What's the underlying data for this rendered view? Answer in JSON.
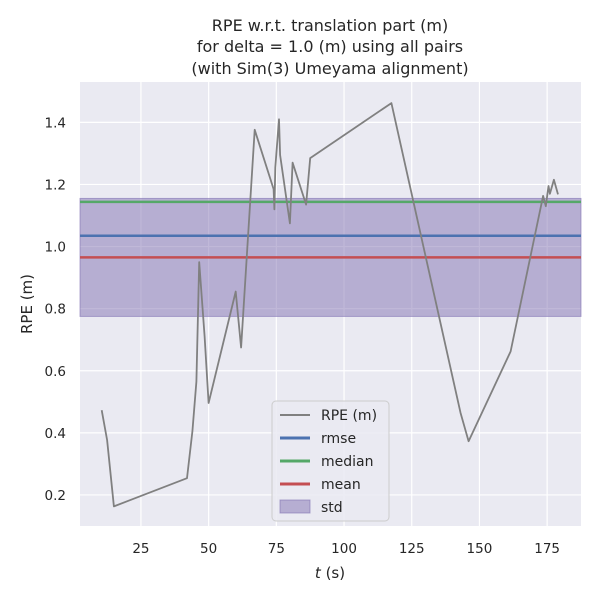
{
  "chart_data": {
    "type": "line",
    "title": [
      "RPE w.r.t. translation part (m)",
      "for delta = 1.0 (m) using all pairs",
      "(with Sim(3) Umeyama alignment)"
    ],
    "xlabel_var": "t",
    "xlabel_unit": " (s)",
    "ylabel": "RPE (m)",
    "xlim": [
      2.5,
      187.5
    ],
    "ylim": [
      0.1,
      1.53
    ],
    "xticks": [
      25,
      50,
      75,
      100,
      125,
      150,
      175
    ],
    "yticks": [
      0.2,
      0.4,
      0.6,
      0.8,
      1.0,
      1.2,
      1.4
    ],
    "ytick_labels": [
      "0.2",
      "0.4",
      "0.6",
      "0.8",
      "1.0",
      "1.2",
      "1.4"
    ],
    "grid": true,
    "legend_position": "lower-center",
    "series": [
      {
        "name": "RPE (m)",
        "color": "#808080",
        "x": [
          10.5,
          12.5,
          15,
          42,
          44,
          45.5,
          46.5,
          48.5,
          50,
          60,
          62,
          67,
          74,
          74.3,
          74.6,
          76,
          76.4,
          80,
          81,
          86,
          87.5,
          117.5,
          143,
          146,
          161.5,
          173.5,
          174.5,
          175.5,
          176,
          177.5,
          179
        ],
        "y": [
          0.473,
          0.377,
          0.163,
          0.254,
          0.405,
          0.565,
          0.95,
          0.711,
          0.496,
          0.855,
          0.675,
          1.376,
          1.185,
          1.12,
          1.255,
          1.41,
          1.295,
          1.075,
          1.27,
          1.135,
          1.285,
          1.462,
          0.465,
          0.373,
          0.662,
          1.163,
          1.13,
          1.195,
          1.17,
          1.215,
          1.168
        ]
      }
    ],
    "stats": {
      "rmse": {
        "name": "rmse",
        "value": 1.035,
        "color": "#4c72b0"
      },
      "median": {
        "name": "median",
        "value": 1.144,
        "color": "#55a868"
      },
      "mean": {
        "name": "mean",
        "value": 0.965,
        "color": "#c44e52"
      },
      "std": {
        "name": "std",
        "low": 0.775,
        "high": 1.155,
        "color": "#8172b2"
      }
    }
  }
}
